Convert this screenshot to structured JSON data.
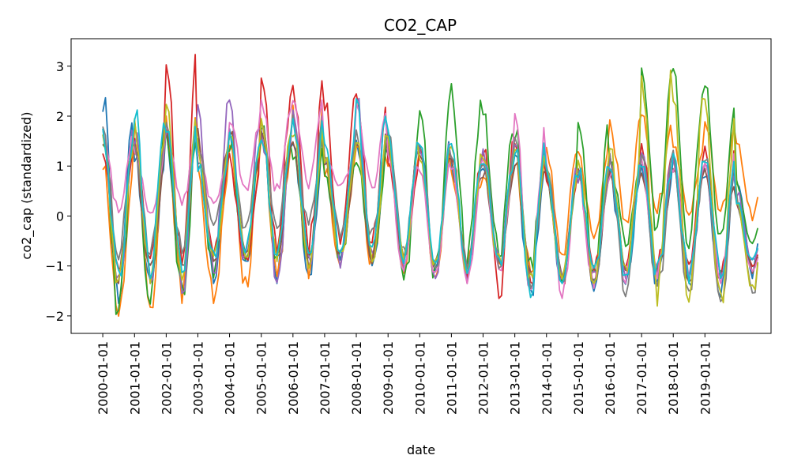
{
  "chart_data": {
    "type": "line",
    "title": "CO2_CAP",
    "xlabel": "date",
    "ylabel": "co2_cap (standardized)",
    "ylim": [
      -2.35,
      3.55
    ],
    "yticks": [
      -2,
      -1,
      0,
      1,
      2,
      3
    ],
    "ytick_labels": [
      "−2",
      "−1",
      "0",
      "1",
      "2",
      "3"
    ],
    "x_start": "2000-01-01",
    "x_end": "2020-09-01",
    "xlim": [
      "1999-01-01",
      "2021-02-01"
    ],
    "xticks": [
      "2000-01-01",
      "2001-01-01",
      "2002-01-01",
      "2003-01-01",
      "2004-01-01",
      "2005-01-01",
      "2006-01-01",
      "2007-01-01",
      "2008-01-01",
      "2009-01-01",
      "2010-01-01",
      "2011-01-01",
      "2012-01-01",
      "2013-01-01",
      "2014-01-01",
      "2015-01-01",
      "2016-01-01",
      "2017-01-01",
      "2018-01-01",
      "2019-01-01"
    ],
    "grid": false,
    "legend": "none",
    "series_count": 10,
    "colors": [
      "#1f77b4",
      "#ff7f0e",
      "#2ca02c",
      "#d62728",
      "#9467bd",
      "#8c564b",
      "#e377c2",
      "#7f7f7f",
      "#bcbd22",
      "#17becf"
    ],
    "annual_peaks": [
      [
        2.5,
        1.3,
        1.8,
        1.2,
        1.7,
        1.9,
        1.6,
        1.3,
        1.5,
        1.5,
        1.5,
        1.1,
        1.0,
        1.2,
        1.0,
        0.9,
        0.9,
        1.0,
        1.2,
        1.0,
        0.8
      ],
      [
        1.2,
        1.9,
        2.0,
        1.0,
        1.5,
        1.8,
        2.2,
        1.0,
        1.5,
        1.2,
        1.3,
        0.9,
        1.0,
        1.1,
        1.4,
        1.3,
        2.0,
        2.1,
        1.5,
        2.0,
        1.5
      ],
      [
        1.7,
        1.9,
        1.8,
        1.5,
        1.5,
        1.9,
        1.4,
        1.0,
        1.3,
        2.0,
        2.3,
        2.6,
        2.1,
        1.8,
        0.9,
        2.0,
        1.2,
        3.3,
        2.9,
        2.7,
        0.7
      ],
      [
        1.4,
        1.5,
        3.3,
        1.1,
        1.2,
        2.9,
        2.8,
        2.4,
        2.4,
        1.2,
        1.3,
        1.4,
        1.6,
        1.4,
        0.9,
        1.1,
        1.2,
        1.4,
        1.4,
        1.4,
        0.2
      ],
      [
        1.9,
        1.7,
        2.0,
        2.3,
        2.3,
        1.8,
        2.1,
        1.4,
        2.4,
        1.6,
        1.5,
        1.2,
        1.4,
        1.5,
        1.0,
        0.9,
        1.1,
        1.3,
        1.1,
        1.0,
        0.5
      ],
      [
        1.5,
        1.4,
        1.8,
        1.7,
        1.7,
        1.7,
        1.8,
        1.2,
        1.7,
        1.5,
        1.2,
        1.1,
        1.0,
        1.2,
        0.9,
        0.8,
        1.0,
        1.0,
        1.0,
        0.9,
        0.3
      ],
      [
        1.6,
        1.3,
        1.8,
        1.3,
        2.0,
        2.3,
        2.4,
        1.2,
        2.2,
        1.3,
        1.1,
        1.2,
        1.2,
        2.0,
        1.0,
        0.9,
        1.0,
        1.1,
        1.1,
        1.3,
        0.3
      ],
      [
        1.8,
        1.4,
        1.9,
        1.4,
        1.6,
        1.8,
        2.0,
        1.3,
        1.8,
        1.7,
        1.4,
        1.3,
        1.3,
        1.6,
        1.1,
        1.0,
        1.2,
        1.2,
        1.3,
        1.3,
        0.4
      ],
      [
        1.6,
        1.9,
        2.4,
        1.4,
        1.6,
        1.9,
        1.9,
        1.2,
        1.7,
        1.6,
        1.4,
        1.4,
        1.2,
        1.5,
        1.0,
        1.3,
        1.4,
        3.0,
        2.6,
        2.5,
        0.4
      ],
      [
        1.7,
        2.2,
        1.9,
        1.1,
        1.8,
        1.8,
        2.1,
        1.6,
        2.3,
        1.7,
        1.5,
        1.4,
        1.3,
        1.6,
        0.9,
        1.0,
        1.1,
        1.2,
        1.2,
        1.1,
        0.3
      ]
    ],
    "annual_troughs": [
      [
        -1.7,
        -1.5,
        -1.6,
        -1.3,
        -1.2,
        -1.3,
        -1.3,
        -1.0,
        -1.0,
        -1.0,
        -1.2,
        -1.2,
        -1.0,
        -1.6,
        -1.5,
        -1.6,
        -1.4,
        -1.4,
        -1.5,
        -1.6,
        -1.2
      ],
      [
        -2.0,
        -2.0,
        -1.7,
        -1.7,
        -1.5,
        -1.3,
        -1.2,
        -1.0,
        -1.0,
        -1.1,
        -1.2,
        -1.0,
        -1.0,
        -1.1,
        -0.8,
        -0.4,
        -0.3,
        0.1,
        0.0,
        0.0,
        -0.1
      ],
      [
        -2.0,
        -1.8,
        -1.7,
        -1.2,
        -1.1,
        -1.0,
        -1.0,
        -0.9,
        -0.9,
        -1.6,
        -1.3,
        -0.9,
        -0.8,
        -1.1,
        -1.3,
        -1.2,
        -0.6,
        -0.5,
        -0.6,
        -0.7,
        -0.6
      ],
      [
        -1.2,
        -0.8,
        -1.1,
        -0.8,
        -1.0,
        -0.7,
        -0.8,
        -0.7,
        -0.6,
        -0.9,
        -1.0,
        -1.2,
        -1.6,
        -1.4,
        -1.4,
        -1.1,
        -1.2,
        -1.1,
        -1.2,
        -1.2,
        -1.1
      ],
      [
        -1.5,
        -1.3,
        -1.5,
        -1.2,
        -1.0,
        -1.3,
        -1.1,
        -1.0,
        -1.0,
        -1.0,
        -1.2,
        -1.3,
        -1.0,
        -1.4,
        -1.3,
        -1.3,
        -1.2,
        -1.3,
        -1.3,
        -1.3,
        -1.0
      ],
      [
        -1.3,
        -1.2,
        -1.2,
        -1.0,
        -0.9,
        -0.9,
        -1.1,
        -0.9,
        -0.9,
        -1.0,
        -1.1,
        -1.1,
        -1.0,
        -1.3,
        -1.2,
        -1.3,
        -1.2,
        -1.2,
        -1.3,
        -1.3,
        -1.1
      ],
      [
        0.1,
        0.0,
        0.2,
        0.2,
        0.5,
        0.5,
        0.6,
        0.6,
        0.5,
        -1.1,
        -1.2,
        -1.3,
        -1.1,
        -1.5,
        -1.6,
        -1.4,
        -1.3,
        -1.2,
        -1.2,
        -1.3,
        -1.1
      ],
      [
        -0.9,
        -0.8,
        -0.7,
        -0.3,
        -0.3,
        -0.2,
        -0.3,
        -0.4,
        -0.5,
        -0.9,
        -1.0,
        -1.0,
        -1.0,
        -1.4,
        -1.4,
        -1.4,
        -1.7,
        -1.6,
        -1.7,
        -1.8,
        -1.6
      ],
      [
        -1.4,
        -1.3,
        -1.5,
        -1.0,
        -0.9,
        -0.9,
        -1.0,
        -0.9,
        -0.9,
        -1.0,
        -1.1,
        -1.1,
        -1.0,
        -1.3,
        -1.3,
        -1.3,
        -1.3,
        -1.8,
        -1.8,
        -1.9,
        -1.5
      ],
      [
        -1.3,
        -1.2,
        -1.1,
        -0.9,
        -0.8,
        -0.9,
        -1.0,
        -0.8,
        -0.8,
        -0.9,
        -1.0,
        -1.1,
        -1.0,
        -1.6,
        -1.3,
        -1.2,
        -1.2,
        -1.2,
        -1.3,
        -1.2,
        -1.0
      ]
    ]
  }
}
